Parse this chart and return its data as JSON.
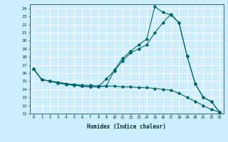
{
  "title": "",
  "xlabel": "Humidex (Indice chaleur)",
  "bg_color": "#cceeff",
  "grid_color": "#ffffff",
  "line_color": "#006666",
  "xlim": [
    -0.5,
    23.5
  ],
  "ylim": [
    11,
    24.5
  ],
  "xticks": [
    0,
    1,
    2,
    3,
    4,
    5,
    6,
    7,
    8,
    9,
    10,
    11,
    12,
    13,
    14,
    15,
    16,
    17,
    18,
    19,
    20,
    21,
    22,
    23
  ],
  "yticks": [
    11,
    12,
    13,
    14,
    15,
    16,
    17,
    18,
    19,
    20,
    21,
    22,
    23,
    24
  ],
  "series": [
    {
      "x": [
        0,
        1,
        2,
        3,
        4,
        5,
        6,
        7,
        8,
        9,
        10,
        11,
        12,
        13,
        14,
        15,
        16,
        17,
        18,
        19,
        20,
        21,
        22,
        23
      ],
      "y": [
        16.5,
        15.2,
        15.0,
        14.8,
        14.6,
        14.5,
        14.4,
        14.3,
        14.3,
        14.4,
        16.4,
        17.8,
        18.7,
        19.5,
        20.2,
        24.2,
        23.5,
        23.2,
        22.2,
        18.1,
        14.7,
        13.0,
        12.5,
        11.2
      ]
    },
    {
      "x": [
        0,
        1,
        2,
        3,
        4,
        5,
        6,
        7,
        8,
        9,
        10,
        11,
        12,
        13,
        14,
        15,
        16,
        17,
        18,
        19,
        20,
        21,
        22,
        23
      ],
      "y": [
        16.5,
        15.2,
        15.0,
        14.8,
        14.6,
        14.5,
        14.4,
        14.3,
        14.3,
        15.3,
        16.3,
        17.5,
        18.5,
        19.0,
        19.5,
        21.0,
        22.2,
        23.3,
        22.2,
        18.1,
        14.7,
        13.0,
        12.5,
        11.2
      ]
    },
    {
      "x": [
        0,
        1,
        2,
        3,
        4,
        5,
        6,
        7,
        8,
        9,
        10,
        11,
        12,
        13,
        14,
        15,
        16,
        17,
        18,
        19,
        20,
        21,
        22,
        23
      ],
      "y": [
        16.5,
        15.2,
        15.0,
        14.9,
        14.7,
        14.6,
        14.5,
        14.5,
        14.4,
        14.4,
        14.4,
        14.3,
        14.3,
        14.2,
        14.2,
        14.1,
        14.0,
        13.9,
        13.5,
        13.0,
        12.5,
        12.0,
        11.5,
        11.2
      ]
    }
  ]
}
